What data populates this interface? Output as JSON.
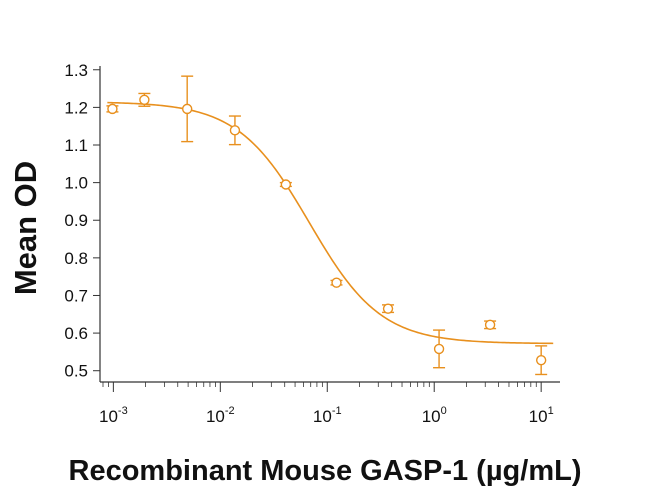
{
  "colors": {
    "series": "#E8901E",
    "axis": "#333333",
    "text": "#111111"
  },
  "chart_data": {
    "type": "scatter",
    "title": "",
    "xlabel": "Recombinant Mouse GASP-1 (µg/mL)",
    "ylabel": "Mean OD",
    "x_scale": "log",
    "xlim": [
      0.00075,
      15
    ],
    "ylim": [
      0.47,
      1.31
    ],
    "x_ticks": [
      {
        "base": "10",
        "exp": "-3",
        "value": 0.001
      },
      {
        "base": "10",
        "exp": "-2",
        "value": 0.01
      },
      {
        "base": "10",
        "exp": "-1",
        "value": 0.1
      },
      {
        "base": "10",
        "exp": "0",
        "value": 1
      },
      {
        "base": "10",
        "exp": "1",
        "value": 10
      }
    ],
    "y_ticks": [
      "0.5",
      "0.6",
      "0.7",
      "0.8",
      "0.9",
      "1.0",
      "1.1",
      "1.2",
      "1.3"
    ],
    "grid": false,
    "legend": "none",
    "marker": "open-circle",
    "series": [
      {
        "points": [
          {
            "x": 0.00098,
            "y": 1.196,
            "err": 0.008
          },
          {
            "x": 0.00195,
            "y": 1.22,
            "err": 0.017
          },
          {
            "x": 0.0049,
            "y": 1.196,
            "err": 0.087
          },
          {
            "x": 0.0137,
            "y": 1.139,
            "err": 0.038
          },
          {
            "x": 0.041,
            "y": 0.995,
            "err": 0.005
          },
          {
            "x": 0.122,
            "y": 0.734,
            "err": 0.006
          },
          {
            "x": 0.37,
            "y": 0.665,
            "err": 0.01
          },
          {
            "x": 1.11,
            "y": 0.558,
            "err": 0.05
          },
          {
            "x": 3.33,
            "y": 0.622,
            "err": 0.01
          },
          {
            "x": 10,
            "y": 0.528,
            "err": 0.038
          }
        ],
        "fit": {
          "model": "4PL",
          "top": 1.215,
          "bottom": 0.572,
          "ec50": 0.068,
          "hill": 1.3
        }
      }
    ]
  }
}
